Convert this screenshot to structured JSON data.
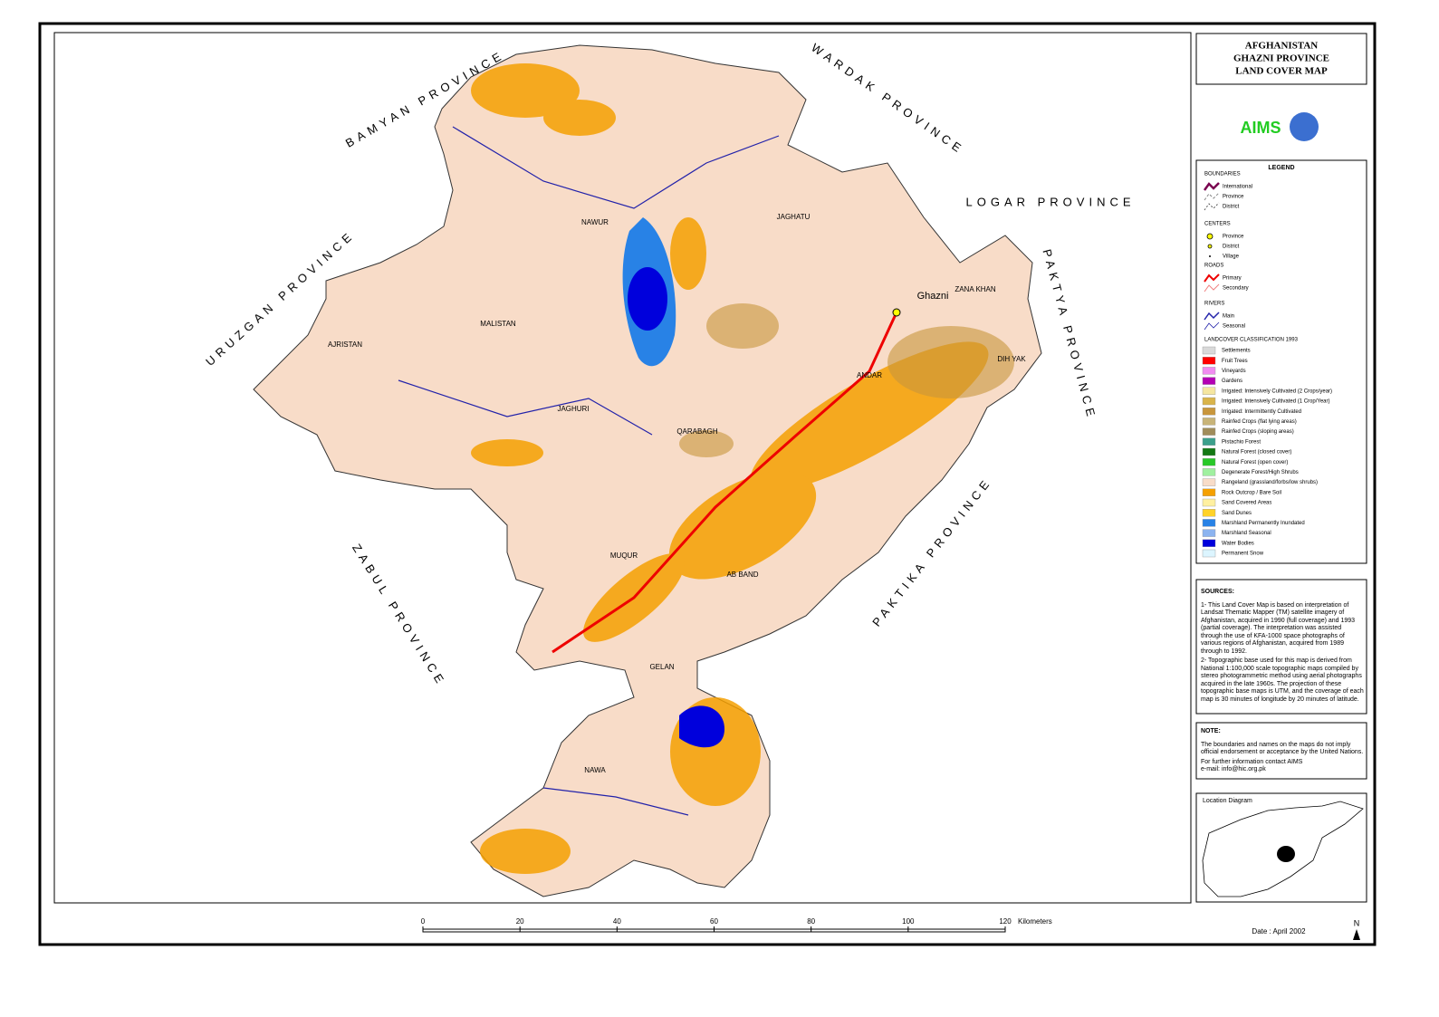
{
  "header": {
    "title_lines": [
      "AFGHANISTAN",
      "GHAZNI PROVINCE",
      "LAND COVER MAP"
    ],
    "logo": "AIMS"
  },
  "provinces": [
    "BAMYAN PROVINCE",
    "WARDAK PROVINCE",
    "LOGAR PROVINCE",
    "PAKTYA PROVINCE",
    "PAKTIKA PROVINCE",
    "ZABUL PROVINCE",
    "URUZGAN PROVINCE"
  ],
  "districts": [
    "NAWUR",
    "MALISTAN",
    "AJRISTAN",
    "JAGHURI",
    "QARABAGH",
    "AB BAND",
    "MUQUR",
    "GELAN",
    "NAWA",
    "ANDAR",
    "DIH YAK",
    "ZANA KHAN",
    "JAGHATU",
    "Ghazni"
  ],
  "legend": {
    "title": "LEGEND",
    "groups": [
      {
        "heading": "BOUNDARIES",
        "items": [
          "International",
          "Province",
          "District"
        ]
      },
      {
        "heading": "CENTERS",
        "items": [
          "Province",
          "District",
          "Village"
        ]
      },
      {
        "heading": "ROADS",
        "items": [
          "Primary",
          "Secondary"
        ]
      },
      {
        "heading": "RIVERS",
        "items": [
          "Main",
          "Seasonal"
        ]
      }
    ],
    "landcover": {
      "heading": "LANDCOVER CLASSIFICATION 1993",
      "items": [
        {
          "label": "Settlements",
          "color": "#d9d9d9"
        },
        {
          "label": "Fruit Trees",
          "color": "#ff0000"
        },
        {
          "label": "Vineyards",
          "color": "#f08cf0"
        },
        {
          "label": "Gardens",
          "color": "#b400b4"
        },
        {
          "label": "Irrigated: Intensively Cultivated (2 Crops/year)",
          "color": "#f5e6a0"
        },
        {
          "label": "Irrigated: Intensively Cultivated (1 Crop/Year)",
          "color": "#d9b44a"
        },
        {
          "label": "Irrigated: Intermittently Cultivated",
          "color": "#c8963c"
        },
        {
          "label": "Rainfed Crops (flat lying areas)",
          "color": "#c8b478"
        },
        {
          "label": "Rainfed Crops (sloping areas)",
          "color": "#a08c5a"
        },
        {
          "label": "Pistachio Forest",
          "color": "#3ca08c"
        },
        {
          "label": "Natural Forest (closed cover)",
          "color": "#147814"
        },
        {
          "label": "Natural Forest (open cover)",
          "color": "#28c828"
        },
        {
          "label": "Degenerate Forest/High Shrubs",
          "color": "#a0f0a0"
        },
        {
          "label": "Rangeland (grassland/forbs/low shrubs)",
          "color": "#f8dcc8"
        },
        {
          "label": "Rock Outcrop / Bare Soil",
          "color": "#f5a000"
        },
        {
          "label": "Sand Covered Areas",
          "color": "#fff0a0"
        },
        {
          "label": "Sand Dunes",
          "color": "#ffd228"
        },
        {
          "label": "Marshland Permanently Inundated",
          "color": "#2882e6"
        },
        {
          "label": "Marshland Seasonal",
          "color": "#8cb4f0"
        },
        {
          "label": "Water Bodies",
          "color": "#0000dc"
        },
        {
          "label": "Permanent Snow",
          "color": "#dcf5ff"
        }
      ]
    }
  },
  "sources": {
    "heading": "SOURCES:",
    "paragraphs": [
      "1- This Land Cover Map is based on interpretation of Landsat Thematic Mapper (TM) satellite imagery of Afghanistan, acquired in 1990 (full coverage) and 1993 (partial coverage). The interpretation was assisted through the use of KFA-1000 space photographs of various regions of Afghanistan, acquired from 1989 through to 1992.",
      "2- Topographic base used for this map is derived from National 1:100,000 scale topographic maps compiled by stereo photogrammetric method using aerial photographs acquired in the late 1960s. The projection of these topographic base maps is UTM, and the coverage of each map is 30 minutes of longitude by 20 minutes of latitude."
    ]
  },
  "note": {
    "heading": "NOTE:",
    "paragraphs": [
      "The boundaries and names on the maps do not imply official endorsement or acceptance by the United Nations.",
      "For further information contact AIMS",
      "e-mail: info@hic.org.pk"
    ]
  },
  "location": {
    "title": "Location Diagram"
  },
  "scale": {
    "ticks": [
      0,
      20,
      40,
      60,
      80,
      100,
      120
    ],
    "xlim": [
      0,
      120
    ],
    "unit": "Kilometers"
  },
  "date": "Date : April 2002",
  "north": "N"
}
